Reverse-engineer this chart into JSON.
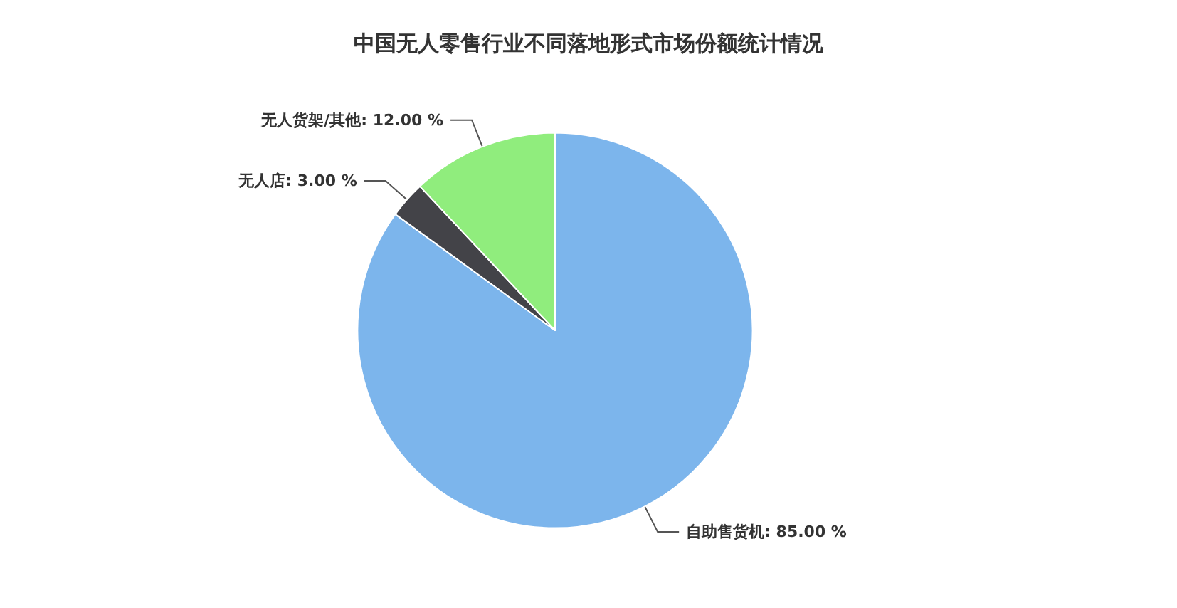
{
  "chart_data": {
    "type": "pie",
    "title": "中国无人零售行业不同落地形式市场份额统计情况",
    "categories": [
      "自助售货机",
      "无人店",
      "无人货架/其他"
    ],
    "values": [
      85,
      3,
      12
    ],
    "colors": [
      "#7cb5ec",
      "#434348",
      "#90ed7d"
    ],
    "value_labels": [
      "85.00 %",
      "3.00 %",
      "12.00 %"
    ],
    "legend": false
  }
}
